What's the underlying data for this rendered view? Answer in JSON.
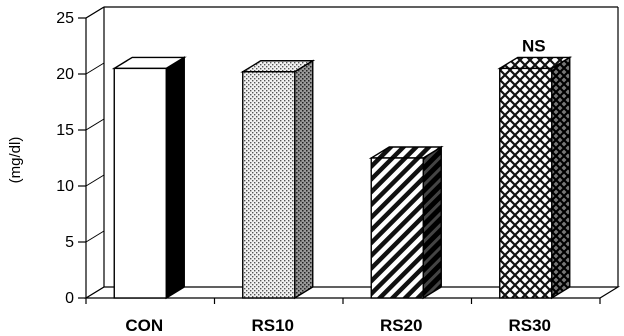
{
  "chart_data": {
    "type": "bar",
    "title": "",
    "xlabel": "",
    "ylabel": "(mg/dl)",
    "categories": [
      "CON",
      "RS10",
      "RS20",
      "RS30"
    ],
    "values": [
      20.5,
      20.2,
      12.5,
      20.5
    ],
    "ylim": [
      0,
      25
    ],
    "yticks": [
      0,
      5,
      10,
      15,
      20,
      25
    ],
    "ytick_labels": [
      "0",
      "5",
      "10",
      "15",
      "20",
      "25"
    ],
    "grid": false,
    "legend": "none",
    "patterns": [
      "plain-white",
      "dots",
      "diagonal-stripes",
      "crosshatch"
    ],
    "annotations": [
      {
        "category": "RS30",
        "text": "NS"
      }
    ]
  }
}
